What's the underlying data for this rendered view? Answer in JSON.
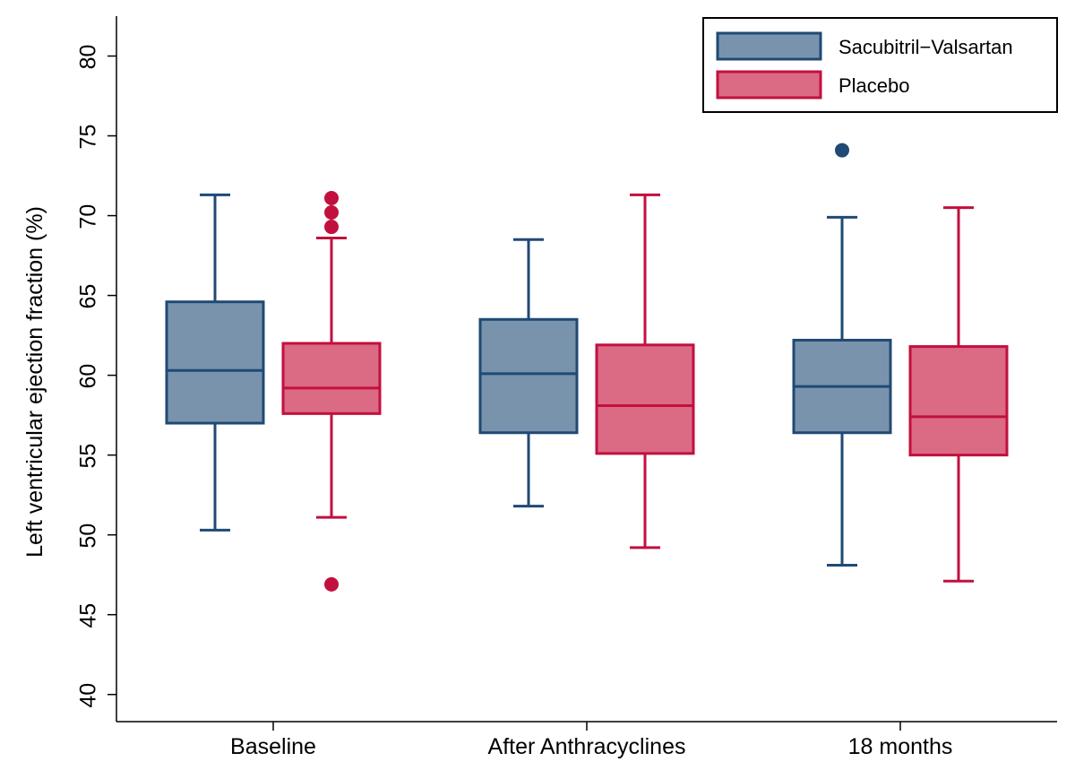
{
  "chart_data": {
    "type": "box",
    "title": "",
    "xlabel": "",
    "ylabel": "Left ventricular ejection fraction (%)",
    "ylim": [
      38.3,
      82.5
    ],
    "yticks": [
      40,
      45,
      50,
      55,
      60,
      65,
      70,
      75,
      80
    ],
    "categories": [
      "Baseline",
      "After Anthracyclines",
      "18 months"
    ],
    "grid": false,
    "legend_position": "top-right",
    "series": [
      {
        "name": "Sacubitril−Valsartan",
        "fill": "#7a93ad",
        "stroke": "#1f4a74",
        "boxes": [
          {
            "whisker_low": 50.3,
            "q1": 57.0,
            "median": 60.3,
            "q3": 64.6,
            "whisker_high": 71.3,
            "outliers": []
          },
          {
            "whisker_low": 51.8,
            "q1": 56.4,
            "median": 60.1,
            "q3": 63.5,
            "whisker_high": 68.5,
            "outliers": []
          },
          {
            "whisker_low": 48.1,
            "q1": 56.4,
            "median": 59.3,
            "q3": 62.2,
            "whisker_high": 69.9,
            "outliers": [
              74.1
            ]
          }
        ]
      },
      {
        "name": "Placebo",
        "fill": "#db6a84",
        "stroke": "#c2103e",
        "boxes": [
          {
            "whisker_low": 51.1,
            "q1": 57.6,
            "median": 59.2,
            "q3": 62.0,
            "whisker_high": 68.6,
            "outliers": [
              71.1,
              70.2,
              69.3,
              46.9
            ]
          },
          {
            "whisker_low": 49.2,
            "q1": 55.1,
            "median": 58.1,
            "q3": 61.9,
            "whisker_high": 71.3,
            "outliers": []
          },
          {
            "whisker_low": 47.1,
            "q1": 55.0,
            "median": 57.4,
            "q3": 61.8,
            "whisker_high": 70.5,
            "outliers": []
          }
        ]
      }
    ]
  }
}
